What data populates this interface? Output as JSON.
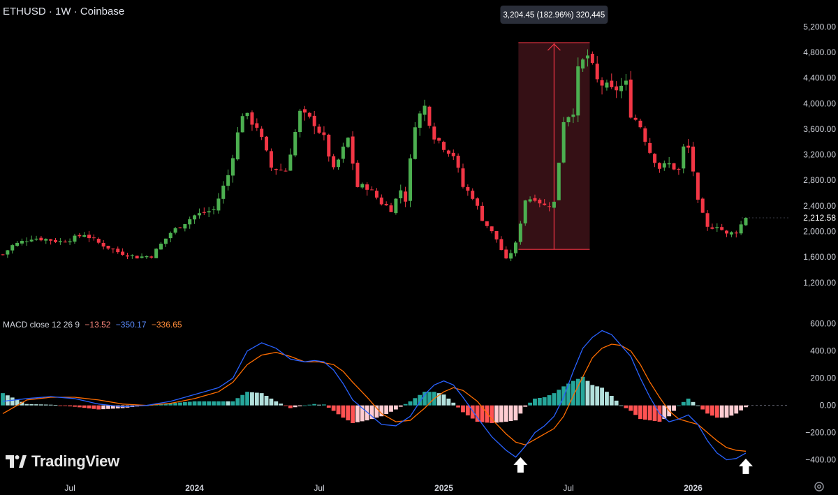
{
  "header": {
    "symbol": "ETHUSD · 1W · Coinbase"
  },
  "measure": {
    "label": "3,204.45 (182.96%) 320,445"
  },
  "macd_legend": {
    "name": "MACD close 12 26 9",
    "hist": "−13.52",
    "macd": "−350.17",
    "signal": "−336.65"
  },
  "brand": {
    "name": "TradingView"
  },
  "colors": {
    "up": "#26a69a",
    "up_green": "#4caf50",
    "down": "#f23645",
    "macd_line": "#2962ff",
    "signal_line": "#ff6d00",
    "hist_up_strong": "#26a69a",
    "hist_up_weak": "#b2dfdb",
    "hist_down_strong": "#ff5252",
    "hist_down_weak": "#ffcdd2",
    "measure_fill": "#3b1217",
    "measure_line": "#f23645"
  },
  "chart_data": [
    {
      "type": "candlestick",
      "title": "ETHUSD · 1W · Coinbase",
      "ylim": [
        1100,
        5400
      ],
      "yticks": [
        1200,
        1600,
        2000,
        2400,
        2800,
        3200,
        3600,
        4000,
        4400,
        4800,
        5200
      ],
      "ytick_labels": [
        "1,200.00",
        "1,600.00",
        "2,000.00",
        "2,400.00",
        "2,800.00",
        "3,200.00",
        "3,600.00",
        "4,000.00",
        "4,400.00",
        "4,800.00",
        "5,200.00"
      ],
      "last_price": 2212.58,
      "last_price_label": "2,212.58",
      "xticks": [
        {
          "label": "Jul",
          "week": 14
        },
        {
          "label": "2024",
          "week": 40
        },
        {
          "label": "Jul",
          "week": 66
        },
        {
          "label": "2025",
          "week": 92
        },
        {
          "label": "Jul",
          "week": 118
        },
        {
          "label": "2026",
          "week": 144
        }
      ],
      "weeks": 156,
      "measure": {
        "from_week": 108,
        "to_week": 122,
        "low": 1720,
        "high": 4950,
        "label": "3,204.45 (182.96%) 320,445"
      },
      "anchors": [
        [
          0,
          1640
        ],
        [
          2,
          1780
        ],
        [
          6,
          1900
        ],
        [
          9,
          1880
        ],
        [
          12,
          1840
        ],
        [
          15,
          1900
        ],
        [
          17,
          1960
        ],
        [
          20,
          1820
        ],
        [
          24,
          1680
        ],
        [
          28,
          1600
        ],
        [
          31,
          1620
        ],
        [
          35,
          1980
        ],
        [
          40,
          2250
        ],
        [
          44,
          2340
        ],
        [
          47,
          2880
        ],
        [
          50,
          3850
        ],
        [
          53,
          3650
        ],
        [
          56,
          3000
        ],
        [
          59,
          2950
        ],
        [
          62,
          3850
        ],
        [
          65,
          3700
        ],
        [
          67,
          3450
        ],
        [
          69,
          2950
        ],
        [
          72,
          3450
        ],
        [
          74,
          2700
        ],
        [
          76,
          2700
        ],
        [
          79,
          2450
        ],
        [
          81,
          2350
        ],
        [
          83,
          2650
        ],
        [
          84,
          2500
        ],
        [
          86,
          3700
        ],
        [
          88,
          3950
        ],
        [
          90,
          3500
        ],
        [
          92,
          3330
        ],
        [
          94,
          3200
        ],
        [
          96,
          2700
        ],
        [
          98,
          2550
        ],
        [
          100,
          2200
        ],
        [
          103,
          1880
        ],
        [
          105,
          1550
        ],
        [
          107,
          1800
        ],
        [
          109,
          2500
        ],
        [
          111,
          2530
        ],
        [
          113,
          2400
        ],
        [
          115,
          2450
        ],
        [
          117,
          3750
        ],
        [
          119,
          3900
        ],
        [
          120,
          4500
        ],
        [
          121,
          4650
        ],
        [
          122,
          4750
        ],
        [
          124,
          4350
        ],
        [
          127,
          4200
        ],
        [
          130,
          4300
        ],
        [
          131,
          3850
        ],
        [
          133,
          3650
        ],
        [
          135,
          3250
        ],
        [
          137,
          3000
        ],
        [
          139,
          3050
        ],
        [
          141,
          2950
        ],
        [
          142,
          3300
        ],
        [
          143,
          3300
        ],
        [
          144,
          2950
        ],
        [
          145,
          2450
        ],
        [
          147,
          2050
        ],
        [
          149,
          2100
        ],
        [
          151,
          1950
        ],
        [
          153,
          2000
        ],
        [
          155,
          2212.58
        ]
      ]
    },
    {
      "type": "macd",
      "name": "MACD close 12 26 9",
      "ylim": [
        -520,
        650
      ],
      "yticks": [
        -400,
        -200,
        0,
        200,
        400,
        600
      ],
      "ytick_labels": [
        "−400.00",
        "−200.00",
        "0.00",
        "200.00",
        "400.00",
        "600.00"
      ],
      "macd_anchors": [
        [
          0,
          30
        ],
        [
          5,
          50
        ],
        [
          10,
          65
        ],
        [
          15,
          50
        ],
        [
          20,
          10
        ],
        [
          25,
          -10
        ],
        [
          30,
          0
        ],
        [
          35,
          30
        ],
        [
          40,
          80
        ],
        [
          45,
          130
        ],
        [
          48,
          200
        ],
        [
          51,
          400
        ],
        [
          54,
          460
        ],
        [
          57,
          420
        ],
        [
          60,
          340
        ],
        [
          63,
          320
        ],
        [
          65,
          330
        ],
        [
          67,
          320
        ],
        [
          69,
          260
        ],
        [
          71,
          160
        ],
        [
          73,
          40
        ],
        [
          76,
          -50
        ],
        [
          79,
          -140
        ],
        [
          82,
          -150
        ],
        [
          85,
          -80
        ],
        [
          88,
          80
        ],
        [
          90,
          150
        ],
        [
          92,
          180
        ],
        [
          94,
          150
        ],
        [
          96,
          60
        ],
        [
          99,
          -90
        ],
        [
          102,
          -230
        ],
        [
          105,
          -330
        ],
        [
          107,
          -380
        ],
        [
          109,
          -300
        ],
        [
          111,
          -200
        ],
        [
          113,
          -150
        ],
        [
          115,
          -80
        ],
        [
          117,
          60
        ],
        [
          119,
          250
        ],
        [
          121,
          420
        ],
        [
          123,
          500
        ],
        [
          125,
          550
        ],
        [
          127,
          520
        ],
        [
          129,
          440
        ],
        [
          131,
          360
        ],
        [
          133,
          200
        ],
        [
          135,
          60
        ],
        [
          137,
          -60
        ],
        [
          139,
          -120
        ],
        [
          141,
          -100
        ],
        [
          143,
          -70
        ],
        [
          145,
          -140
        ],
        [
          147,
          -260
        ],
        [
          149,
          -350
        ],
        [
          151,
          -400
        ],
        [
          153,
          -390
        ],
        [
          155,
          -350
        ]
      ],
      "signal_anchors": [
        [
          0,
          -60
        ],
        [
          5,
          40
        ],
        [
          10,
          60
        ],
        [
          15,
          60
        ],
        [
          20,
          40
        ],
        [
          25,
          10
        ],
        [
          30,
          0
        ],
        [
          35,
          15
        ],
        [
          40,
          50
        ],
        [
          45,
          100
        ],
        [
          48,
          170
        ],
        [
          51,
          300
        ],
        [
          54,
          370
        ],
        [
          57,
          390
        ],
        [
          60,
          360
        ],
        [
          63,
          320
        ],
        [
          66,
          320
        ],
        [
          69,
          300
        ],
        [
          71,
          250
        ],
        [
          73,
          170
        ],
        [
          76,
          60
        ],
        [
          79,
          -60
        ],
        [
          82,
          -120
        ],
        [
          85,
          -110
        ],
        [
          88,
          -20
        ],
        [
          90,
          50
        ],
        [
          92,
          100
        ],
        [
          94,
          130
        ],
        [
          96,
          110
        ],
        [
          99,
          30
        ],
        [
          102,
          -100
        ],
        [
          105,
          -210
        ],
        [
          107,
          -270
        ],
        [
          109,
          -290
        ],
        [
          111,
          -250
        ],
        [
          113,
          -210
        ],
        [
          115,
          -170
        ],
        [
          117,
          -80
        ],
        [
          119,
          70
        ],
        [
          121,
          210
        ],
        [
          123,
          350
        ],
        [
          125,
          420
        ],
        [
          127,
          450
        ],
        [
          129,
          440
        ],
        [
          131,
          400
        ],
        [
          133,
          300
        ],
        [
          135,
          170
        ],
        [
          137,
          60
        ],
        [
          139,
          -40
        ],
        [
          141,
          -100
        ],
        [
          143,
          -120
        ],
        [
          145,
          -140
        ],
        [
          147,
          -200
        ],
        [
          149,
          -260
        ],
        [
          151,
          -310
        ],
        [
          153,
          -330
        ],
        [
          155,
          -336.65
        ]
      ],
      "arrows_at_weeks": [
        108,
        155
      ]
    }
  ]
}
